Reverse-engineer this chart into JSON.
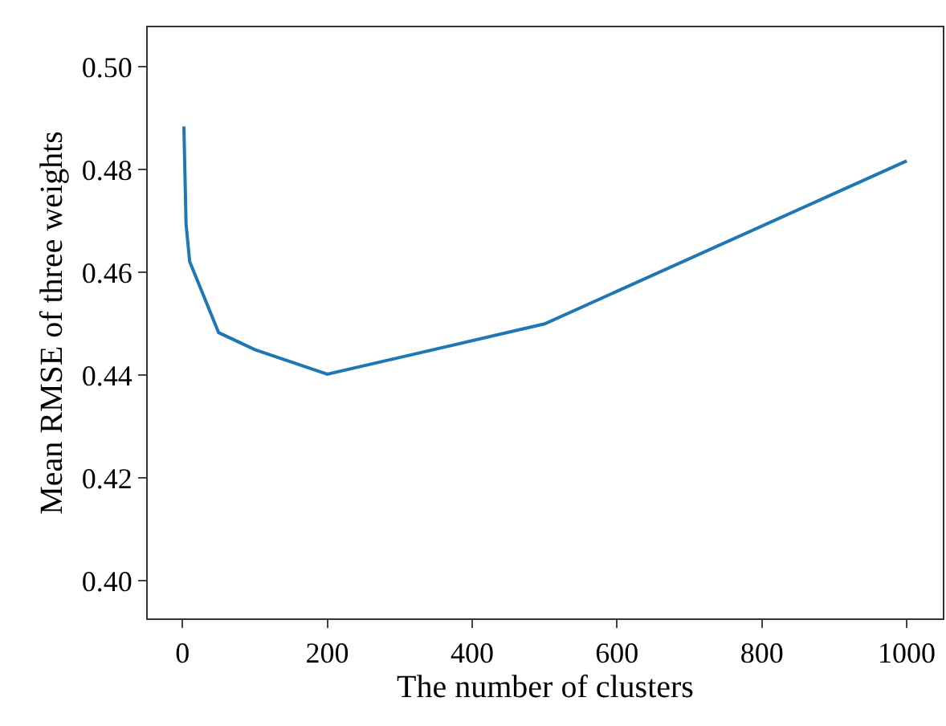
{
  "chart_data": {
    "type": "line",
    "xlabel": "The number of clusters",
    "ylabel": "Mean RMSE of three weights",
    "x": [
      2,
      5,
      10,
      50,
      100,
      200,
      500,
      1000
    ],
    "series": [
      {
        "color": "#1f77b4",
        "values": [
          0.4884,
          0.4694,
          0.4621,
          0.4483,
          0.445,
          0.4402,
          0.45,
          0.4817
        ]
      }
    ],
    "xlim": [
      -47.9,
      1049.9
    ],
    "xticks": [
      0,
      200,
      400,
      600,
      800,
      1000
    ],
    "ylim": [
      0.3927,
      0.5077
    ],
    "yticks": [
      {
        "value": 0.4,
        "label": "0.40"
      },
      {
        "value": 0.42,
        "label": "0.42"
      },
      {
        "value": 0.44,
        "label": "0.44"
      },
      {
        "value": 0.46,
        "label": "0.46"
      },
      {
        "value": 0.48,
        "label": "0.48"
      },
      {
        "value": 0.5,
        "label": "0.50"
      }
    ],
    "marker": "none",
    "line_style": "solid"
  }
}
